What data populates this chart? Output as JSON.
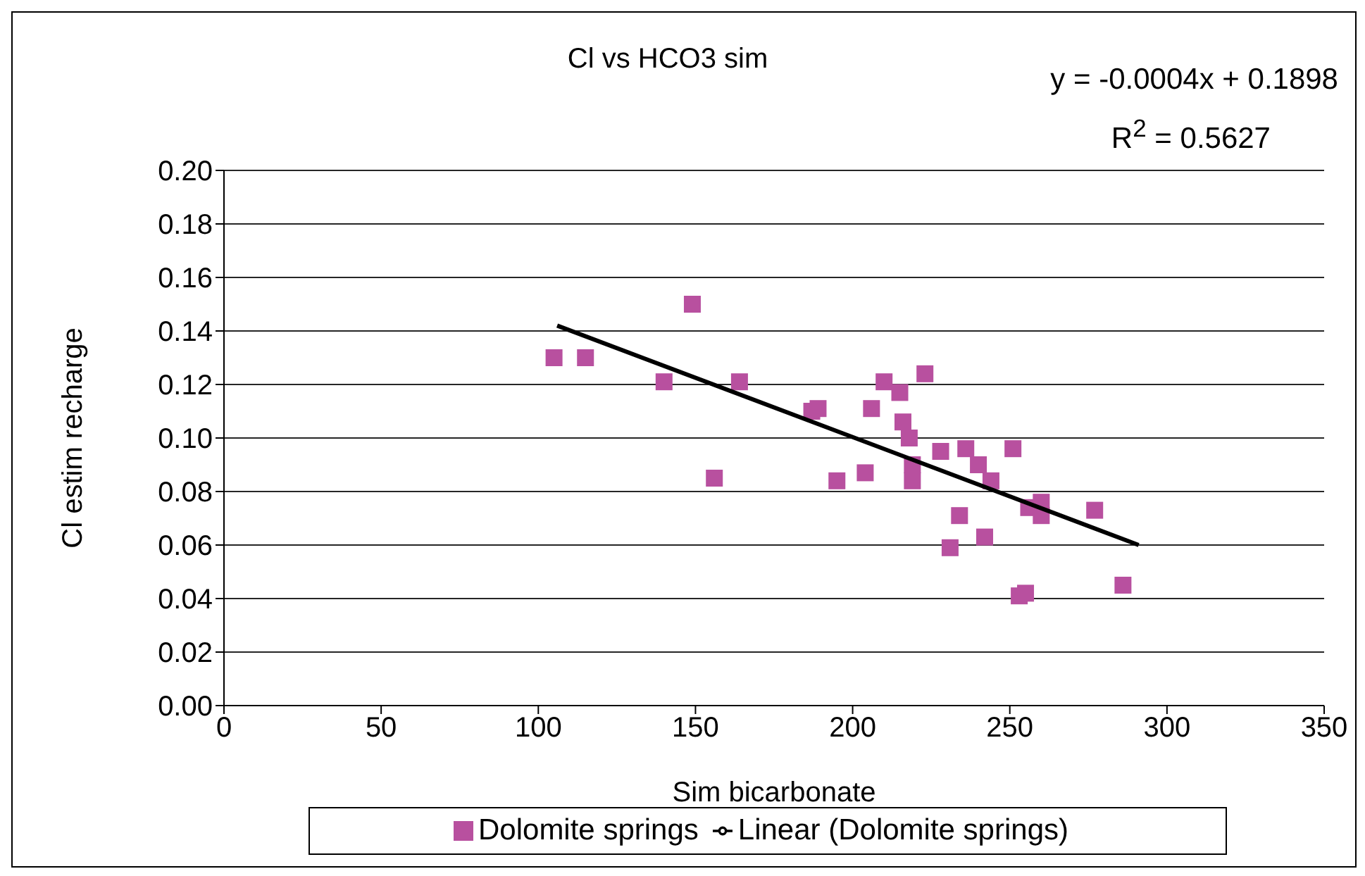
{
  "chart_data": {
    "type": "scatter",
    "title": "Cl vs HCO3 sim",
    "xlabel": "Sim bicarbonate",
    "ylabel": "Cl estim recharge",
    "annotations": [
      "y = -0.0004x + 0.1898",
      "R$^{2}$ = 0.5627"
    ],
    "series": [
      {
        "name": "Dolomite springs",
        "color": "#b8509f",
        "marker": "square",
        "x": [
          105,
          115,
          140,
          149,
          156,
          164,
          187,
          189,
          195,
          204,
          206,
          210,
          215,
          216,
          218,
          219,
          219,
          223,
          228,
          231,
          234,
          236,
          240,
          242,
          244,
          251,
          253,
          255,
          256,
          260,
          260,
          277,
          286
        ],
        "values": [
          0.13,
          0.13,
          0.121,
          0.15,
          0.085,
          0.121,
          0.11,
          0.111,
          0.084,
          0.087,
          0.111,
          0.121,
          0.117,
          0.106,
          0.1,
          0.09,
          0.084,
          0.124,
          0.095,
          0.059,
          0.071,
          0.096,
          0.09,
          0.063,
          0.084,
          0.096,
          0.041,
          0.042,
          0.074,
          0.071,
          0.076,
          0.073,
          0.045
        ]
      },
      {
        "name": "Linear (Dolomite springs)",
        "type": "line",
        "color": "#000000",
        "marker": "none",
        "x": [
          106,
          291
        ],
        "values": [
          0.142,
          0.06
        ]
      }
    ],
    "xlim": [
      0,
      350
    ],
    "xticks": [
      0,
      50,
      100,
      150,
      200,
      250,
      300,
      350
    ],
    "ylim": [
      0,
      0.2
    ],
    "yticks": [
      {
        "value": 0,
        "label": "0.00"
      },
      {
        "value": 0.02,
        "label": "0.02"
      },
      {
        "value": 0.04,
        "label": "0.04"
      },
      {
        "value": 0.06,
        "label": "0.06"
      },
      {
        "value": 0.08,
        "label": "0.08"
      },
      {
        "value": 0.1,
        "label": "0.10"
      },
      {
        "value": 0.12,
        "label": "0.12"
      },
      {
        "value": 0.14,
        "label": "0.14"
      },
      {
        "value": 0.16,
        "label": "0.16"
      },
      {
        "value": 0.18,
        "label": "0.18"
      },
      {
        "value": 0.2,
        "label": "0.20"
      }
    ],
    "grid": "y",
    "legend": "bottom"
  }
}
